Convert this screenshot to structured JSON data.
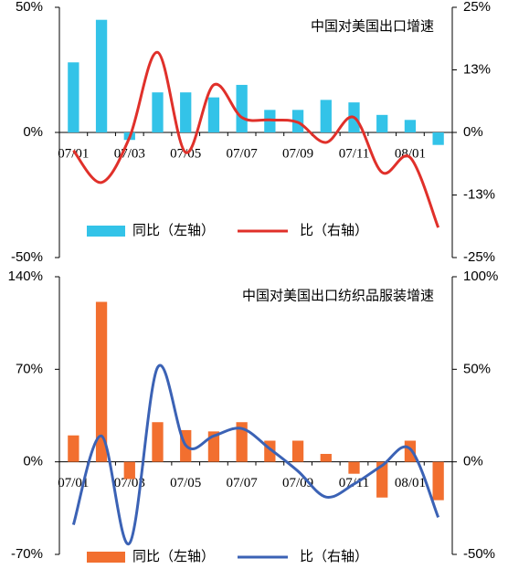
{
  "chart_data": [
    {
      "type": "bar-line",
      "title": "中国对美国出口增速",
      "categories": [
        "07/01",
        null,
        "07/03",
        null,
        "07/05",
        null,
        "07/07",
        null,
        "07/09",
        null,
        "07/11",
        null,
        "08/01",
        null
      ],
      "series": [
        {
          "name": "同比（左轴）",
          "color": "#33c3e8",
          "values": [
            28,
            45,
            -3,
            16,
            16,
            14,
            19,
            9,
            9,
            13,
            12,
            7,
            5,
            -5
          ]
        },
        {
          "name": "比（右轴）",
          "color": "#e0302a",
          "axis": "y2",
          "values": [
            -3.6,
            -10,
            -1,
            16,
            -4,
            9.5,
            3,
            2.5,
            2,
            -2,
            3,
            -8,
            -5,
            -19
          ]
        }
      ],
      "ylim": [
        -50,
        50
      ],
      "yticks": [
        {
          "value": -50,
          "label": "-50%"
        },
        {
          "value": 0,
          "label": "0%"
        },
        {
          "value": 50,
          "label": "50%"
        }
      ],
      "y2lim": [
        -25,
        25
      ],
      "y2ticks": [
        {
          "value": -25,
          "label": "-25%"
        },
        {
          "value": -12.5,
          "label": "-13%"
        },
        {
          "value": 0,
          "label": "0%"
        },
        {
          "value": 12.5,
          "label": "13%"
        },
        {
          "value": 25,
          "label": "25%"
        }
      ]
    },
    {
      "type": "bar-line",
      "title": "中国对美国出口纺织品服装增速",
      "categories": [
        "07/01",
        null,
        "07/03",
        null,
        "07/05",
        null,
        "07/07",
        null,
        "07/09",
        null,
        "07/11",
        null,
        "08/01",
        null
      ],
      "series": [
        {
          "name": "同比（左轴）",
          "color": "#f26f2f",
          "values": [
            20,
            121,
            -13,
            30,
            24,
            23,
            30,
            16,
            16,
            6,
            -9,
            -27,
            16,
            -29
          ]
        },
        {
          "name": "比（右轴）",
          "color": "#3b62b5",
          "axis": "y2",
          "values": [
            -34,
            14,
            -44,
            51,
            9,
            14,
            18,
            7,
            -5,
            -19,
            -12,
            -2,
            7,
            -30
          ]
        }
      ],
      "ylim": [
        -70,
        140
      ],
      "yticks": [
        {
          "value": -70,
          "label": "-70%"
        },
        {
          "value": 0,
          "label": "0%"
        },
        {
          "value": 70,
          "label": "70%"
        },
        {
          "value": 140,
          "label": "140%"
        }
      ],
      "y2lim": [
        -50,
        100
      ],
      "y2ticks": [
        {
          "value": -50,
          "label": "-50%"
        },
        {
          "value": 0,
          "label": "0%"
        },
        {
          "value": 50,
          "label": "50%"
        },
        {
          "value": 100,
          "label": "100%"
        }
      ]
    }
  ]
}
